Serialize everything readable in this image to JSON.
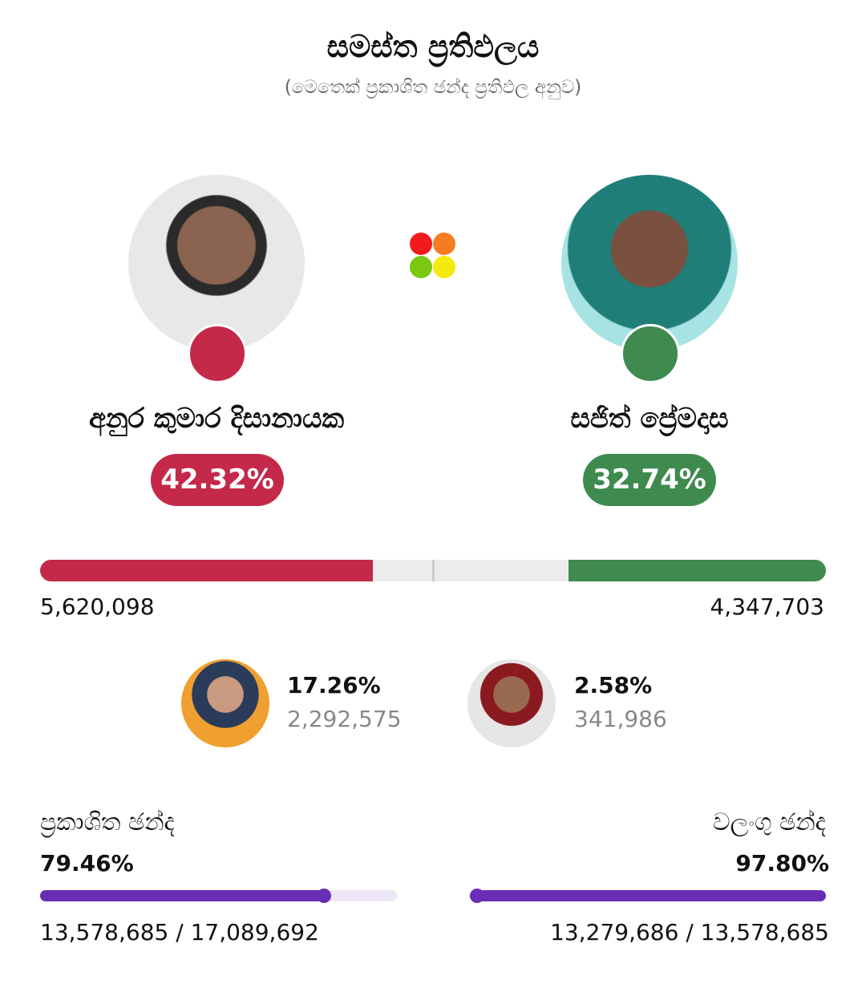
{
  "header": {
    "title": "සමස්ත ප්‍රතිඵලය",
    "subtitle": "(මෙතෙක් ප්‍රකාශිත ඡන්ද ප්‍රතිඵල අනුව)"
  },
  "main_candidates": [
    {
      "name": "අනුර කුමාර දිසානායක",
      "percent": {
        "value": 42.32,
        "label": "42.32%"
      },
      "votes": {
        "value": 5620098,
        "label": "5,620,098"
      },
      "color": "#c4294a"
    },
    {
      "name": "සජිත් ප්‍රේමදාස",
      "percent": {
        "value": 32.74,
        "label": "32.74%"
      },
      "votes": {
        "value": 4347703,
        "label": "4,347,703"
      },
      "color": "#3e8a4f"
    }
  ],
  "other_candidates": [
    {
      "percent": {
        "value": 17.26,
        "label": "17.26%"
      },
      "votes": {
        "value": 2292575,
        "label": "2,292,575"
      }
    },
    {
      "percent": {
        "value": 2.58,
        "label": "2.58%"
      },
      "votes": {
        "value": 341986,
        "label": "341,986"
      }
    }
  ],
  "stats": [
    {
      "label": "ප්‍රකාශිත ඡන්ද",
      "percent": {
        "value": 79.46,
        "label": "79.46%"
      },
      "count": {
        "value": 13578685,
        "label": "13,578,685"
      },
      "total": {
        "value": 17089692,
        "label": "17,089,692"
      },
      "separator": "/"
    },
    {
      "label": "වලංගු ඡන්ද",
      "percent": {
        "value": 97.8,
        "label": "97.80%"
      },
      "count": {
        "value": 13279686,
        "label": "13,279,686"
      },
      "total": {
        "value": 13578685,
        "label": "13,578,685"
      },
      "separator": "/"
    }
  ]
}
